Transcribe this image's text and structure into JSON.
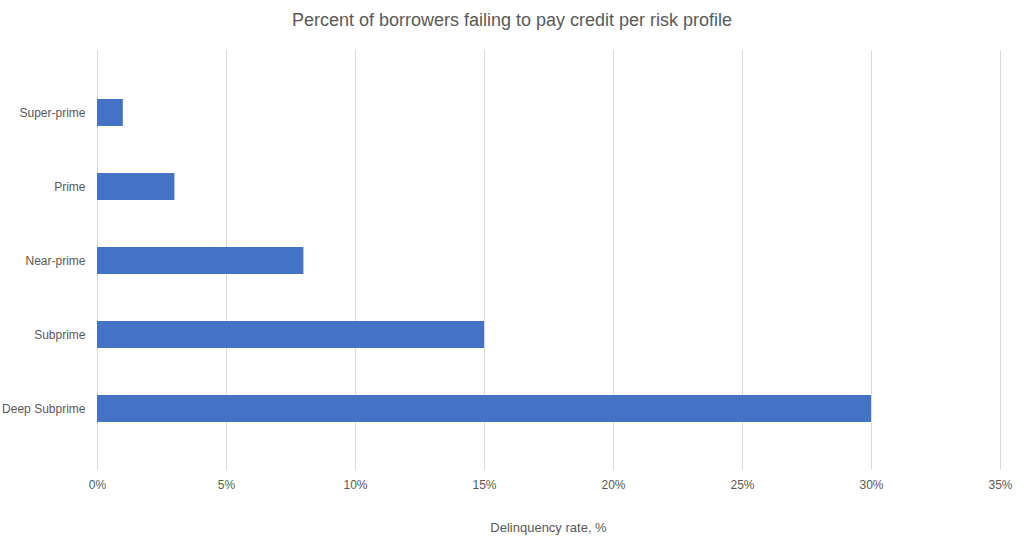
{
  "chart_data": {
    "type": "bar",
    "orientation": "horizontal",
    "title": "Percent of borrowers failing to pay credit per risk profile",
    "x_label": "Delinquency rate, %",
    "categories": [
      "Super-prime",
      "Prime",
      "Near-prime",
      "Subprime",
      "Deep Subprime"
    ],
    "values": [
      1,
      3,
      8,
      15,
      30
    ],
    "color": "#4472c4",
    "xlim": [
      0,
      35
    ],
    "xticks": [
      {
        "value": 0,
        "label": "0%"
      },
      {
        "value": 5,
        "label": "5%"
      },
      {
        "value": 10,
        "label": "10%"
      },
      {
        "value": 15,
        "label": "15%"
      },
      {
        "value": 20,
        "label": "20%"
      },
      {
        "value": 25,
        "label": "25%"
      },
      {
        "value": 30,
        "label": "30%"
      },
      {
        "value": 35,
        "label": "35%"
      }
    ],
    "grid": true
  }
}
